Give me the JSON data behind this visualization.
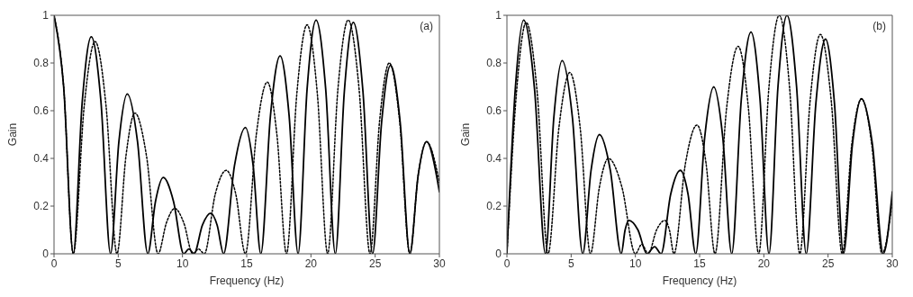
{
  "chart_data": [
    {
      "type": "line",
      "xlabel": "Frequency (Hz)",
      "ylabel": "Gain",
      "annotations": [
        "(a)"
      ],
      "xlim": [
        0,
        30
      ],
      "xticks": [
        0,
        5,
        10,
        15,
        20,
        25,
        30
      ],
      "ylim": [
        0,
        1
      ],
      "yticks": [
        0,
        0.2,
        0.4,
        0.6,
        0.8,
        1
      ],
      "grid": false,
      "legend": false,
      "marker": "none",
      "series": [
        {
          "color": "#000000",
          "line_style": "solid",
          "x": [
            0,
            0.75,
            1.5,
            2.2,
            2.9,
            3.65,
            4.4,
            5.05,
            5.7,
            6.5,
            7.3,
            7.9,
            8.5,
            9.3,
            10.1,
            10.5,
            10.9,
            11.55,
            12.2,
            12.7,
            13.2,
            14.05,
            14.9,
            15.5,
            16.1,
            16.85,
            17.6,
            18.3,
            19.0,
            19.7,
            20.4,
            21.15,
            21.9,
            22.6,
            23.3,
            24.05,
            24.8,
            25.5,
            26.2,
            26.95,
            27.7,
            28.35,
            29.0,
            30
          ],
          "values": [
            1,
            0.7,
            0,
            0.64,
            0.91,
            0.64,
            0,
            0.47,
            0.67,
            0.47,
            0,
            0.22,
            0.32,
            0.22,
            0,
            0.02,
            0,
            0.12,
            0.17,
            0.12,
            0,
            0.37,
            0.53,
            0.37,
            0,
            0.58,
            0.83,
            0.58,
            0,
            0.69,
            0.98,
            0.69,
            0,
            0.68,
            0.97,
            0.68,
            0,
            0.55,
            0.79,
            0.55,
            0,
            0.33,
            0.47,
            0.26
          ]
        },
        {
          "color": "#000000",
          "line_style": "dotted",
          "x": [
            0,
            0.75,
            1.5,
            2.35,
            3.2,
            4.05,
            4.9,
            5.6,
            6.3,
            7.2,
            8.1,
            8.75,
            9.4,
            10.1,
            10.8,
            11.25,
            11.7,
            12.55,
            13.4,
            14.15,
            14.9,
            15.75,
            16.6,
            17.35,
            18.1,
            18.9,
            19.7,
            20.5,
            21.3,
            22.1,
            22.9,
            23.75,
            24.6,
            25.35,
            26.1,
            26.9,
            27.7,
            28.35,
            29.0,
            30
          ],
          "values": [
            1,
            0.7,
            0,
            0.62,
            0.89,
            0.62,
            0,
            0.41,
            0.59,
            0.41,
            0,
            0.13,
            0.19,
            0.13,
            0,
            0.02,
            0,
            0.25,
            0.35,
            0.25,
            0,
            0.5,
            0.72,
            0.5,
            0,
            0.67,
            0.96,
            0.67,
            0,
            0.69,
            0.98,
            0.69,
            0,
            0.56,
            0.8,
            0.56,
            0,
            0.33,
            0.47,
            0.3
          ]
        }
      ]
    },
    {
      "type": "line",
      "xlabel": "Frequency (Hz)",
      "ylabel": "Gain",
      "annotations": [
        "(b)"
      ],
      "xlim": [
        0,
        30
      ],
      "xticks": [
        0,
        5,
        10,
        15,
        20,
        25,
        30
      ],
      "ylim": [
        0,
        1
      ],
      "yticks": [
        0,
        0.2,
        0.4,
        0.6,
        0.8,
        1
      ],
      "grid": false,
      "legend": false,
      "marker": "none",
      "series": [
        {
          "color": "#000000",
          "line_style": "solid",
          "x": [
            0,
            0.65,
            1.3,
            2.15,
            3.0,
            3.65,
            4.3,
            5.1,
            5.9,
            6.55,
            7.2,
            8.05,
            8.9,
            9.2,
            9.5,
            10.2,
            10.9,
            11.5,
            12.0,
            12.75,
            13.5,
            14.1,
            14.7,
            15.4,
            16.1,
            16.8,
            17.5,
            18.25,
            19.0,
            19.7,
            20.4,
            21.1,
            21.8,
            22.55,
            23.3,
            24.05,
            24.8,
            25.5,
            26.2,
            26.9,
            27.6,
            28.45,
            29.3,
            30
          ],
          "values": [
            0,
            0.69,
            0.98,
            0.69,
            0,
            0.57,
            0.81,
            0.57,
            0,
            0.35,
            0.5,
            0.35,
            0,
            0.1,
            0.14,
            0.1,
            0,
            0.03,
            0,
            0.25,
            0.35,
            0.25,
            0,
            0.49,
            0.7,
            0.49,
            0,
            0.65,
            0.93,
            0.65,
            0,
            0.7,
            1,
            0.7,
            0,
            0.63,
            0.9,
            0.63,
            0,
            0.46,
            0.65,
            0.46,
            0,
            0.26
          ]
        },
        {
          "color": "#000000",
          "line_style": "dotted",
          "x": [
            0,
            0.75,
            1.5,
            2.35,
            3.2,
            4.05,
            4.9,
            5.7,
            6.5,
            7.2,
            7.9,
            8.95,
            10.0,
            10.5,
            11.0,
            11.65,
            12.3,
            12.65,
            13.0,
            13.9,
            14.8,
            15.5,
            16.2,
            17.1,
            18.0,
            18.8,
            19.6,
            20.4,
            21.2,
            22.0,
            22.8,
            23.6,
            24.4,
            25.25,
            26.1,
            26.85,
            27.6,
            28.4,
            29.2,
            30
          ],
          "values": [
            0,
            0.68,
            0.97,
            0.68,
            0,
            0.53,
            0.76,
            0.53,
            0,
            0.28,
            0.4,
            0.28,
            0,
            0.04,
            0,
            0.1,
            0.14,
            0.1,
            0,
            0.38,
            0.54,
            0.38,
            0,
            0.61,
            0.87,
            0.61,
            0,
            0.7,
            1,
            0.7,
            0,
            0.64,
            0.92,
            0.64,
            0,
            0.46,
            0.65,
            0.46,
            0,
            0.22
          ]
        }
      ]
    }
  ]
}
